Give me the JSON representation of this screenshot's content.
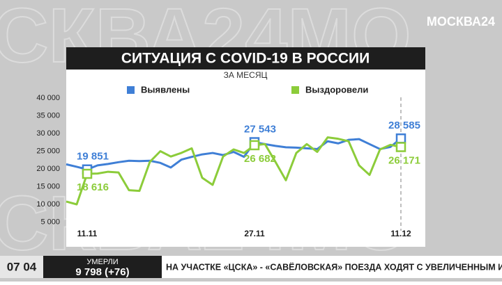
{
  "chart_data": {
    "type": "line",
    "title": "СИТУАЦИЯ С COVID-19 В РОССИИ",
    "subtitle": "ЗА МЕСЯЦ",
    "categories": [
      null,
      null,
      "11.11",
      null,
      null,
      null,
      null,
      null,
      null,
      null,
      null,
      null,
      null,
      null,
      null,
      null,
      null,
      null,
      "27.11",
      null,
      null,
      null,
      null,
      null,
      null,
      null,
      null,
      null,
      null,
      null,
      null,
      null,
      "11.12"
    ],
    "series": [
      {
        "name": "Выявлены",
        "color": "#3f7fd6",
        "values": [
          21300,
          20600,
          19851,
          21000,
          21400,
          21900,
          22300,
          22200,
          22300,
          21700,
          20400,
          22600,
          23400,
          24100,
          24500,
          23900,
          24800,
          23400,
          27543,
          27000,
          26500,
          26100,
          26000,
          25800,
          25600,
          27800,
          27200,
          28200,
          28400,
          27000,
          25600,
          26200,
          28585
        ],
        "value_labels": [
          null,
          null,
          "19 851",
          null,
          null,
          null,
          null,
          null,
          null,
          null,
          null,
          null,
          null,
          null,
          null,
          null,
          null,
          null,
          "27 543",
          null,
          null,
          null,
          null,
          null,
          null,
          null,
          null,
          null,
          null,
          null,
          null,
          null,
          "28 585"
        ]
      },
      {
        "name": "Выздоровели",
        "color": "#8ccc3a",
        "values": [
          10800,
          10000,
          18616,
          18700,
          19200,
          19000,
          14000,
          13800,
          22000,
          25000,
          23500,
          24500,
          25800,
          17500,
          15500,
          23500,
          25500,
          24500,
          26682,
          27000,
          22000,
          16800,
          24500,
          27000,
          24800,
          28900,
          28500,
          27800,
          21000,
          18300,
          25500,
          26800,
          26171
        ],
        "value_labels": [
          null,
          null,
          "18 616",
          null,
          null,
          null,
          null,
          null,
          null,
          null,
          null,
          null,
          null,
          null,
          null,
          null,
          null,
          null,
          "26 682",
          null,
          null,
          null,
          null,
          null,
          null,
          null,
          null,
          null,
          null,
          null,
          null,
          null,
          "26 171"
        ]
      }
    ],
    "ylim": [
      0,
      40000
    ],
    "yticks": [
      {
        "value": 5000,
        "label": "5 000"
      },
      {
        "value": 10000,
        "label": "10 000"
      },
      {
        "value": 15000,
        "label": "15 000"
      },
      {
        "value": 20000,
        "label": "20 000"
      },
      {
        "value": 25000,
        "label": "25 000"
      },
      {
        "value": 30000,
        "label": "30 000"
      },
      {
        "value": 35000,
        "label": "35 000"
      },
      {
        "value": 40000,
        "label": "40 000"
      }
    ]
  },
  "branding": {
    "logo": "МОСКВА24",
    "watermark": "СКВА24МО"
  },
  "ticker": {
    "time": "07 04",
    "label": "УМЕРЛИ",
    "value": "9 798 (+76)",
    "headline": "НА УЧАСТКЕ «ЦСКА» - «САВЁЛОВСКАЯ» ПОЕЗДА ХОДЯТ С УВЕЛИЧЕННЫМ ИНТЕРВАЛОМ"
  }
}
